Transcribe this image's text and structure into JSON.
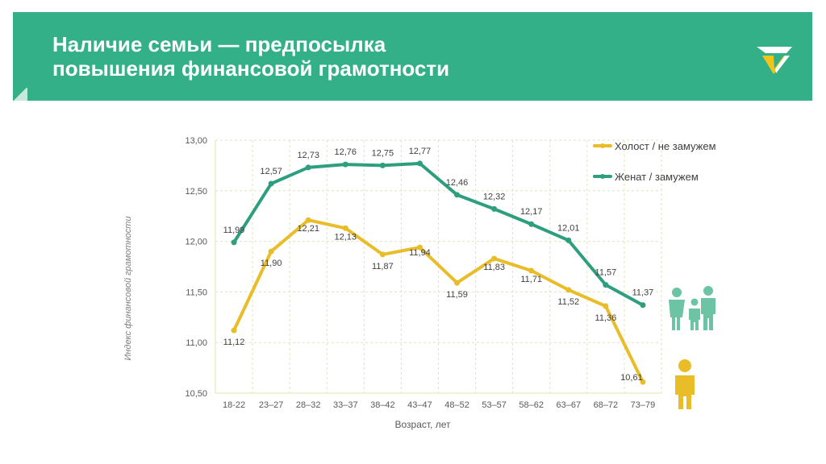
{
  "slide": {
    "title_line1": "Наличие семьи — предпосылка",
    "title_line2": "повышения финансовой грамотности",
    "logo_icon": "checkmark-logo-icon"
  },
  "colors": {
    "header": "#34b089",
    "single": "#e9bd28",
    "married": "#2d9e7e",
    "family_icon": "#6cc4a4",
    "person_icon": "#e9bd28",
    "grid": "#e2e6b0"
  },
  "chart_data": {
    "type": "line",
    "categories": [
      "18-22",
      "23–27",
      "28–32",
      "33–37",
      "38–42",
      "43–47",
      "48–52",
      "53–57",
      "58–62",
      "63–67",
      "68–72",
      "73–79"
    ],
    "series": [
      {
        "name": "Холост / не замужем",
        "color": "#e9bd28",
        "values": [
          11.12,
          11.9,
          12.21,
          12.13,
          11.87,
          11.94,
          11.59,
          11.83,
          11.71,
          11.52,
          11.36,
          10.61
        ],
        "labels": [
          "11,12",
          "11,90",
          "12,21",
          "12,13",
          "11,87",
          "11,94",
          "11,59",
          "11,83",
          "11,71",
          "11,52",
          "11,36",
          "10,61"
        ]
      },
      {
        "name": "Женат / замужем",
        "color": "#2d9e7e",
        "values": [
          11.99,
          12.57,
          12.73,
          12.76,
          12.75,
          12.77,
          12.46,
          12.32,
          12.17,
          12.01,
          11.57,
          11.37
        ],
        "labels": [
          "11,99",
          "12,57",
          "12,73",
          "12,76",
          "12,75",
          "12,77",
          "12,46",
          "12,32",
          "12,17",
          "12,01",
          "11,57",
          "11,37"
        ]
      }
    ],
    "ylim": [
      10.5,
      13.0
    ],
    "yticks": [
      "10,50",
      "11,00",
      "11,50",
      "12,00",
      "12,50",
      "13,00"
    ],
    "ytick_values": [
      10.5,
      11.0,
      11.5,
      12.0,
      12.5,
      13.0
    ],
    "xlabel": "Возраст, лет",
    "ylabel": "Индекс финансовой грамотности",
    "grid": "dashed",
    "legend_position": "top-right"
  }
}
